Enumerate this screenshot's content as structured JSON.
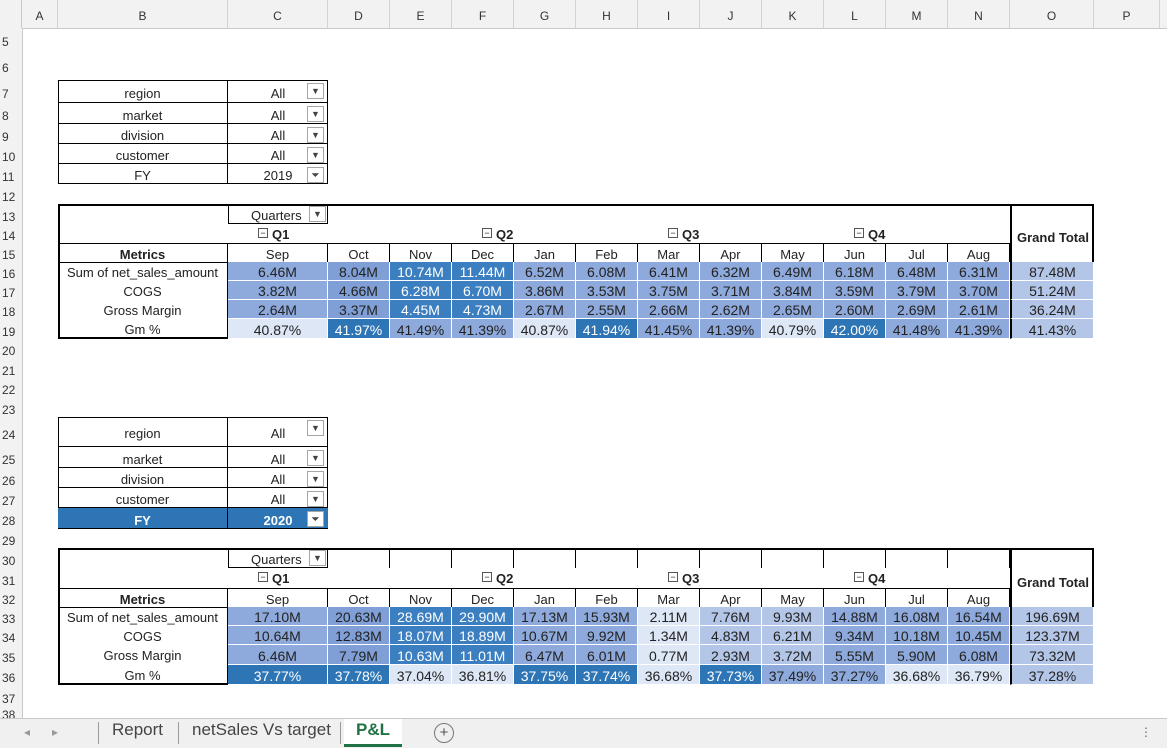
{
  "columns": [
    "A",
    "B",
    "C",
    "D",
    "E",
    "F",
    "G",
    "H",
    "I",
    "J",
    "K",
    "L",
    "M",
    "N",
    "O",
    "P"
  ],
  "rows": [
    "5",
    "6",
    "7",
    "8",
    "9",
    "10",
    "11",
    "12",
    "13",
    "14",
    "15",
    "16",
    "17",
    "18",
    "19",
    "20",
    "21",
    "22",
    "23",
    "24",
    "25",
    "26",
    "27",
    "28",
    "29",
    "30",
    "31",
    "32",
    "33",
    "34",
    "35",
    "36",
    "37",
    "38"
  ],
  "filters_2019": [
    {
      "label": "region",
      "value": "All"
    },
    {
      "label": "market",
      "value": "All"
    },
    {
      "label": "division",
      "value": "All"
    },
    {
      "label": "customer",
      "value": "All"
    },
    {
      "label": "FY",
      "value": "2019"
    }
  ],
  "filters_2020": [
    {
      "label": "region",
      "value": "All"
    },
    {
      "label": "market",
      "value": "All"
    },
    {
      "label": "division",
      "value": "All"
    },
    {
      "label": "customer",
      "value": "All"
    },
    {
      "label": "FY",
      "value": "2020"
    }
  ],
  "pivot": {
    "quarters_label": "Quarters",
    "metrics_label": "Metrics",
    "grand_total_label": "Grand Total",
    "quarters": [
      "Q1",
      "Q2",
      "Q3",
      "Q4"
    ],
    "months": [
      "Sep",
      "Oct",
      "Nov",
      "Dec",
      "Jan",
      "Feb",
      "Mar",
      "Apr",
      "May",
      "Jun",
      "Jul",
      "Aug"
    ],
    "metric_names": [
      "Sum of net_sales_amount",
      "COGS",
      "Gross Margin",
      "Gm %"
    ]
  },
  "table_2019": [
    [
      "6.46M",
      "8.04M",
      "10.74M",
      "11.44M",
      "6.52M",
      "6.08M",
      "6.41M",
      "6.32M",
      "6.49M",
      "6.18M",
      "6.48M",
      "6.31M",
      "87.48M"
    ],
    [
      "3.82M",
      "4.66M",
      "6.28M",
      "6.70M",
      "3.86M",
      "3.53M",
      "3.75M",
      "3.71M",
      "3.84M",
      "3.59M",
      "3.79M",
      "3.70M",
      "51.24M"
    ],
    [
      "2.64M",
      "3.37M",
      "4.45M",
      "4.73M",
      "2.67M",
      "2.55M",
      "2.66M",
      "2.62M",
      "2.65M",
      "2.60M",
      "2.69M",
      "2.61M",
      "36.24M"
    ],
    [
      "40.87%",
      "41.97%",
      "41.49%",
      "41.39%",
      "40.87%",
      "41.94%",
      "41.45%",
      "41.39%",
      "40.79%",
      "42.00%",
      "41.48%",
      "41.39%",
      "41.43%"
    ]
  ],
  "table_2020": [
    [
      "17.10M",
      "20.63M",
      "28.69M",
      "29.90M",
      "17.13M",
      "15.93M",
      "2.11M",
      "7.76M",
      "9.93M",
      "14.88M",
      "16.08M",
      "16.54M",
      "196.69M"
    ],
    [
      "10.64M",
      "12.83M",
      "18.07M",
      "18.89M",
      "10.67M",
      "9.92M",
      "1.34M",
      "4.83M",
      "6.21M",
      "9.34M",
      "10.18M",
      "10.45M",
      "123.37M"
    ],
    [
      "6.46M",
      "7.79M",
      "10.63M",
      "11.01M",
      "6.47M",
      "6.01M",
      "0.77M",
      "2.93M",
      "3.72M",
      "5.55M",
      "5.90M",
      "6.08M",
      "73.32M"
    ],
    [
      "37.77%",
      "37.78%",
      "37.04%",
      "36.81%",
      "37.75%",
      "37.74%",
      "36.68%",
      "37.73%",
      "37.49%",
      "37.27%",
      "36.68%",
      "36.79%",
      "37.28%"
    ]
  ],
  "shades_2019": [
    [
      3,
      2,
      1,
      1,
      3,
      3,
      3,
      3,
      3,
      3,
      3,
      3,
      4
    ],
    [
      3,
      2,
      1,
      1,
      3,
      3,
      3,
      3,
      3,
      3,
      3,
      3,
      4
    ],
    [
      3,
      2,
      1,
      1,
      3,
      3,
      3,
      3,
      3,
      3,
      3,
      3,
      4
    ],
    [
      5,
      0,
      3,
      3,
      5,
      0,
      3,
      3,
      5,
      0,
      3,
      3,
      4
    ]
  ],
  "shades_2020": [
    [
      3,
      2,
      1,
      1,
      3,
      3,
      5,
      4,
      4,
      3,
      3,
      3,
      4
    ],
    [
      3,
      2,
      1,
      1,
      3,
      3,
      5,
      4,
      4,
      3,
      3,
      3,
      4
    ],
    [
      3,
      2,
      1,
      1,
      3,
      3,
      5,
      4,
      4,
      3,
      3,
      3,
      4
    ],
    [
      0,
      0,
      5,
      5,
      0,
      0,
      5,
      0,
      3,
      3,
      5,
      5,
      4
    ]
  ],
  "shade_colors": [
    "#2e75b6",
    "#3c7fc0",
    "#7f9fd6",
    "#8ea9db",
    "#b4c6e7",
    "#dde7f6"
  ],
  "tabs": [
    "Report",
    "netSales Vs target",
    "P&L"
  ],
  "active_tab": "P&L"
}
